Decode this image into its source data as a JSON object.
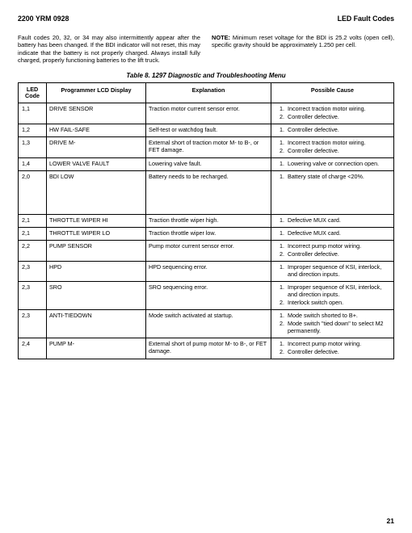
{
  "header": {
    "left": "2200 YRM 0928",
    "right": "LED Fault Codes"
  },
  "intro": {
    "left": "Fault codes 20, 32, or 34 may also intermittently appear after the battery has been changed. If the BDI indicator will not reset, this may indicate that the battery is not properly charged. Always install fully charged, properly functioning batteries to the lift truck.",
    "note_label": "NOTE:",
    "right": " Minimum reset voltage for the BDI is 25.2 volts (open cell), specific gravity should be approximately 1.250 per cell."
  },
  "table": {
    "caption": "Table 8.  1297 Diagnostic and Troubleshooting Menu",
    "headers": {
      "code": "LED Code",
      "programmer": "Programmer LCD Display",
      "explanation": "Explanation",
      "cause": "Possible Cause"
    },
    "rows": [
      {
        "code": "1,1",
        "prog": "DRIVE SENSOR",
        "expl": "Traction motor current sensor error.",
        "causes": [
          "Incorrect traction motor wiring.",
          "Controller defective."
        ]
      },
      {
        "code": "1,2",
        "prog": "HW FAIL-SAFE",
        "expl": "Self-test or watchdog fault.",
        "causes": [
          "Controller defective."
        ]
      },
      {
        "code": "1,3",
        "prog": "DRIVE M-",
        "expl": "External short of traction motor M- to B-, or FET damage.",
        "causes": [
          "Incorrect traction motor wiring.",
          "Controller defective."
        ]
      },
      {
        "code": "1,4",
        "prog": "LOWER VALVE FAULT",
        "expl": "Lowering valve fault.",
        "causes": [
          "Lowering valve or connection open."
        ]
      },
      {
        "code": "2,0",
        "prog": "BDI LOW",
        "expl": "Battery needs to be recharged.",
        "causes": [
          "Battery state of charge <20%."
        ],
        "tall": true
      },
      {
        "code": "2,1",
        "prog": "THROTTLE WIPER HI",
        "expl": "Traction throttle wiper high.",
        "causes": [
          "Defective MUX card."
        ]
      },
      {
        "code": "2,1",
        "prog": "THROTTLE WIPER LO",
        "expl": "Traction throttle wiper low.",
        "causes": [
          "Defective MUX card."
        ]
      },
      {
        "code": "2,2",
        "prog": "PUMP SENSOR",
        "expl": "Pump motor current sensor error.",
        "causes": [
          "Incorrect pump motor wiring.",
          "Controller defective."
        ]
      },
      {
        "code": "2,3",
        "prog": "HPD",
        "expl": "HPD sequencing error.",
        "causes": [
          "Improper sequence of KSI, interlock, and direction inputs."
        ]
      },
      {
        "code": "2,3",
        "prog": "SRO",
        "expl": "SRO sequencing error.",
        "causes": [
          "Improper sequence of KSI, interlock, and direction inputs.",
          "Interlock switch open."
        ]
      },
      {
        "code": "2,3",
        "prog": "ANTI-TIEDOWN",
        "expl": "Mode switch activated at startup.",
        "causes": [
          "Mode switch shorted to B+.",
          "Mode switch \"tied down\" to select M2 permanently."
        ]
      },
      {
        "code": "2,4",
        "prog": "PUMP M-",
        "expl": "External short of pump motor M- to B-, or FET damage.",
        "causes": [
          "Incorrect pump motor wiring.",
          "Controller defective."
        ]
      }
    ]
  },
  "page_number": "21"
}
